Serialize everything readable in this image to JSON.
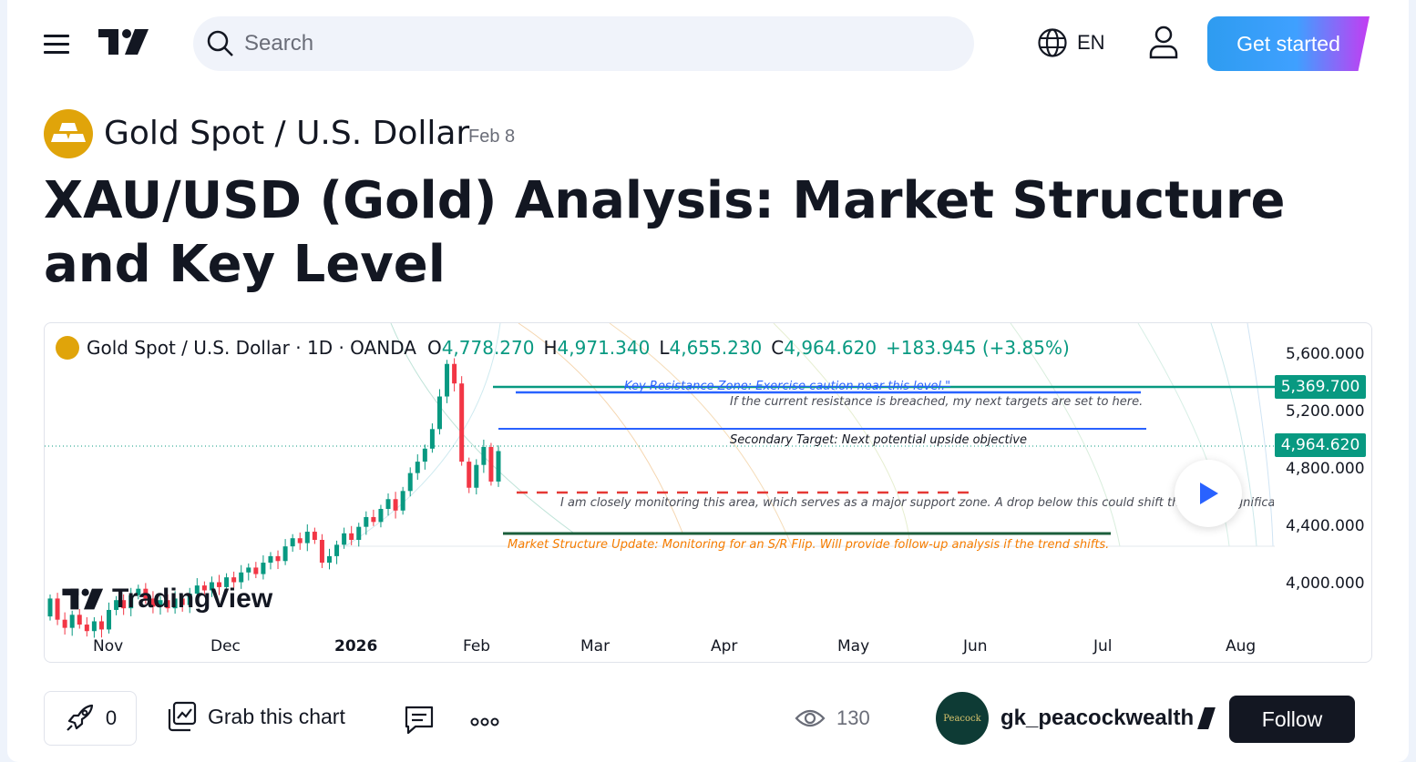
{
  "header": {
    "search_placeholder": "Search",
    "language": "EN",
    "get_started": "Get started"
  },
  "idea": {
    "symbol": "Gold Spot / U.S. Dollar",
    "date": "Feb 8",
    "title": "XAU/USD (Gold) Analysis: Market Structure and Key Level"
  },
  "chart": {
    "legend": {
      "symbol": "Gold Spot / U.S. Dollar · 1D · OANDA",
      "o_label": "O",
      "o_value": "4,778.270",
      "h_label": "H",
      "h_value": "4,971.340",
      "l_label": "L",
      "l_value": "4,655.230",
      "c_label": "C",
      "c_value": "4,964.620",
      "change": "+183.945 (+3.85%)"
    },
    "price_tags": {
      "resistance": "5,369.700",
      "last": "4,964.620"
    },
    "price_axis": [
      "5,600.000",
      "5,200.000",
      "4,800.000",
      "4,400.000",
      "4,000.000"
    ],
    "time_axis": [
      "Nov",
      "Dec",
      "2026",
      "Feb",
      "Mar",
      "Apr",
      "May",
      "Jun",
      "Jul",
      "Aug"
    ],
    "annotations": {
      "resistance": "Key Resistance Zone: Exercise caution near this level.\"",
      "targets": "If the current resistance is breached, my next targets are set to here.",
      "secondary": "Secondary Target: Next potential upside objective",
      "support": "I am closely monitoring this area, which serves as a major support zone. A drop below this could shift the trend significar",
      "structure": "Market Structure Update: Monitoring for an S/R Flip. Will provide follow-up analysis if the trend shifts."
    },
    "watermark": "TradingView",
    "colors": {
      "up": "#089981",
      "down": "#f23645",
      "blue": "#2962ff",
      "dark_green": "#1b5e3b",
      "orange": "#f57c00"
    }
  },
  "chart_data": {
    "type": "candlestick",
    "interval": "1D",
    "ylim": [
      3850,
      5750
    ],
    "price_levels": {
      "resistance": 5369.7,
      "last": 4964.62
    },
    "candles": [
      [
        3950,
        4060
      ],
      [
        4060,
        3930
      ],
      [
        3930,
        3880
      ],
      [
        3880,
        3960
      ],
      [
        3960,
        3900
      ],
      [
        3900,
        3860
      ],
      [
        3860,
        3920
      ],
      [
        3920,
        3870
      ],
      [
        3870,
        3990
      ],
      [
        3990,
        4050
      ],
      [
        4050,
        4000
      ],
      [
        4000,
        4080
      ],
      [
        4080,
        4120
      ],
      [
        4120,
        4060
      ],
      [
        4060,
        4010
      ],
      [
        4010,
        4050
      ],
      [
        4050,
        4000
      ],
      [
        4000,
        4060
      ],
      [
        4060,
        4020
      ],
      [
        4020,
        4090
      ],
      [
        4090,
        4140
      ],
      [
        4140,
        4110
      ],
      [
        4110,
        4160
      ],
      [
        4160,
        4130
      ],
      [
        4130,
        4190
      ],
      [
        4190,
        4160
      ],
      [
        4160,
        4220
      ],
      [
        4220,
        4250
      ],
      [
        4250,
        4210
      ],
      [
        4210,
        4280
      ],
      [
        4280,
        4320
      ],
      [
        4320,
        4290
      ],
      [
        4290,
        4380
      ],
      [
        4380,
        4430
      ],
      [
        4430,
        4400
      ],
      [
        4400,
        4470
      ],
      [
        4470,
        4420
      ],
      [
        4420,
        4280
      ],
      [
        4280,
        4320
      ],
      [
        4320,
        4390
      ],
      [
        4390,
        4460
      ],
      [
        4460,
        4420
      ],
      [
        4420,
        4500
      ],
      [
        4500,
        4560
      ],
      [
        4560,
        4530
      ],
      [
        4530,
        4610
      ],
      [
        4610,
        4670
      ],
      [
        4670,
        4600
      ],
      [
        4600,
        4720
      ],
      [
        4720,
        4830
      ],
      [
        4830,
        4900
      ],
      [
        4900,
        4980
      ],
      [
        4980,
        5100
      ],
      [
        5100,
        5300
      ],
      [
        5300,
        5500
      ],
      [
        5500,
        5380
      ],
      [
        5380,
        4900
      ],
      [
        4900,
        4740
      ],
      [
        4740,
        4880
      ],
      [
        4880,
        4990
      ],
      [
        4990,
        4778
      ],
      [
        4778,
        4965
      ]
    ]
  }
}
